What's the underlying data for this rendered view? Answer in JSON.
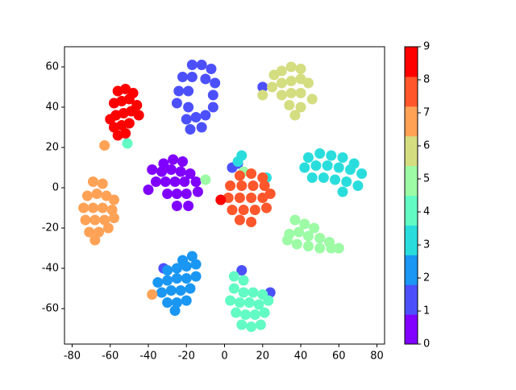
{
  "chart_data": {
    "type": "scatter",
    "xlim": [
      -84,
      84
    ],
    "ylim": [
      -77.6,
      70
    ],
    "xticks": [
      -80,
      -60,
      -40,
      -20,
      0,
      20,
      40,
      60,
      80
    ],
    "yticks": [
      -60,
      -40,
      -20,
      0,
      20,
      40,
      60
    ],
    "colorbar": {
      "lim": [
        0,
        9
      ],
      "ticks": [
        0,
        1,
        2,
        3,
        4,
        5,
        6,
        7,
        8,
        9
      ]
    },
    "series": [
      {
        "color": "#8000ff",
        "x": [
          -32,
          -27,
          -22,
          -38,
          -33,
          -28,
          -23,
          -18,
          -36,
          -31,
          -26,
          -21,
          -15,
          -30,
          -25,
          -20,
          -14,
          -25,
          -19,
          -40
        ],
        "values": [
          12,
          14,
          13,
          9,
          8,
          9,
          8,
          7,
          3,
          3,
          3,
          3,
          3,
          -3,
          -3,
          -3,
          -2,
          -9,
          -9,
          -1
        ]
      },
      {
        "color": "#4c50fc",
        "x": [
          -17,
          -12,
          -7,
          -22,
          -17,
          -10,
          -5,
          -24,
          -19,
          -6,
          -25,
          -19,
          -6,
          -20,
          -15,
          -10,
          -18,
          -12,
          20,
          4,
          7,
          9,
          -32,
          24
        ],
        "values": [
          61,
          61,
          59,
          55,
          55,
          54,
          52,
          48,
          48,
          46,
          42,
          40,
          40,
          34,
          35,
          36,
          29,
          30,
          50,
          10,
          12,
          -41,
          -40,
          -52
        ]
      },
      {
        "color": "#1a96f3",
        "x": [
          -22,
          -17,
          -30,
          -25,
          -20,
          -15,
          -35,
          -30,
          -25,
          -20,
          -15,
          -33,
          -28,
          -23,
          -18,
          -30,
          -25,
          -20,
          -26
        ],
        "values": [
          -36,
          -34,
          -41,
          -40,
          -39,
          -38,
          -47,
          -46,
          -45,
          -45,
          -44,
          -52,
          -51,
          -51,
          -50,
          -57,
          -57,
          -56,
          -61
        ]
      },
      {
        "color": "#2adddd",
        "x": [
          44,
          50,
          56,
          62,
          68,
          42,
          48,
          54,
          60,
          66,
          72,
          46,
          52,
          58,
          64,
          70,
          62,
          9,
          7,
          22
        ],
        "values": [
          15,
          17,
          16,
          15,
          12,
          10,
          11,
          11,
          10,
          9,
          7,
          5,
          5,
          4,
          3,
          1,
          -2,
          16,
          13,
          5
        ]
      },
      {
        "color": "#62fbc4",
        "x": [
          5,
          10,
          5,
          10,
          15,
          20,
          3,
          8,
          13,
          18,
          23,
          6,
          11,
          16,
          21,
          9,
          14,
          19,
          -51
        ],
        "values": [
          -44,
          -46,
          -50,
          -52,
          -52,
          -53,
          -56,
          -57,
          -57,
          -58,
          -56,
          -62,
          -63,
          -63,
          -62,
          -68,
          -69,
          -68,
          22
        ]
      },
      {
        "color": "#9cfba4",
        "x": [
          37,
          42,
          47,
          34,
          39,
          44,
          50,
          55,
          38,
          44,
          50,
          56,
          60,
          33,
          10,
          -10
        ],
        "values": [
          -16,
          -18,
          -20,
          -23,
          -22,
          -24,
          -25,
          -27,
          -28,
          -29,
          -30,
          -30,
          -30,
          -26,
          8,
          4
        ]
      },
      {
        "color": "#d4dd80",
        "x": [
          26,
          30,
          35,
          40,
          25,
          30,
          35,
          40,
          44,
          30,
          35,
          40,
          46,
          34,
          40,
          37,
          20
        ],
        "values": [
          56,
          58,
          60,
          59,
          50,
          52,
          53,
          54,
          52,
          46,
          47,
          47,
          44,
          41,
          40,
          36,
          46
        ]
      },
      {
        "color": "#ffa256",
        "x": [
          -69,
          -64,
          -72,
          -67,
          -62,
          -58,
          -74,
          -69,
          -64,
          -59,
          -73,
          -68,
          -63,
          -58,
          -71,
          -66,
          -61,
          -68,
          -63,
          -38
        ],
        "values": [
          3,
          2,
          -4,
          -3,
          -4,
          -6,
          -10,
          -10,
          -10,
          -11,
          -16,
          -16,
          -16,
          -15,
          -22,
          -22,
          -20,
          -26,
          21,
          -53
        ]
      },
      {
        "color": "#ff562c",
        "x": [
          8,
          14,
          20,
          3,
          9,
          15,
          21,
          2,
          8,
          14,
          20,
          24,
          4,
          10,
          16,
          22,
          8,
          14
        ],
        "values": [
          6,
          7,
          5,
          1,
          1,
          1,
          1,
          -5,
          -5,
          -5,
          -5,
          -3,
          -11,
          -11,
          -11,
          -10,
          -16,
          -17
        ]
      },
      {
        "color": "#ff0000",
        "x": [
          -56,
          -52,
          -48,
          -58,
          -54,
          -50,
          -46,
          -57,
          -53,
          -49,
          -45,
          -58,
          -54,
          -50,
          -56,
          -52,
          -60,
          -2
        ],
        "values": [
          48,
          49,
          47,
          42,
          43,
          44,
          41,
          36,
          37,
          38,
          36,
          30,
          31,
          32,
          26,
          27,
          34,
          -6
        ]
      }
    ]
  }
}
